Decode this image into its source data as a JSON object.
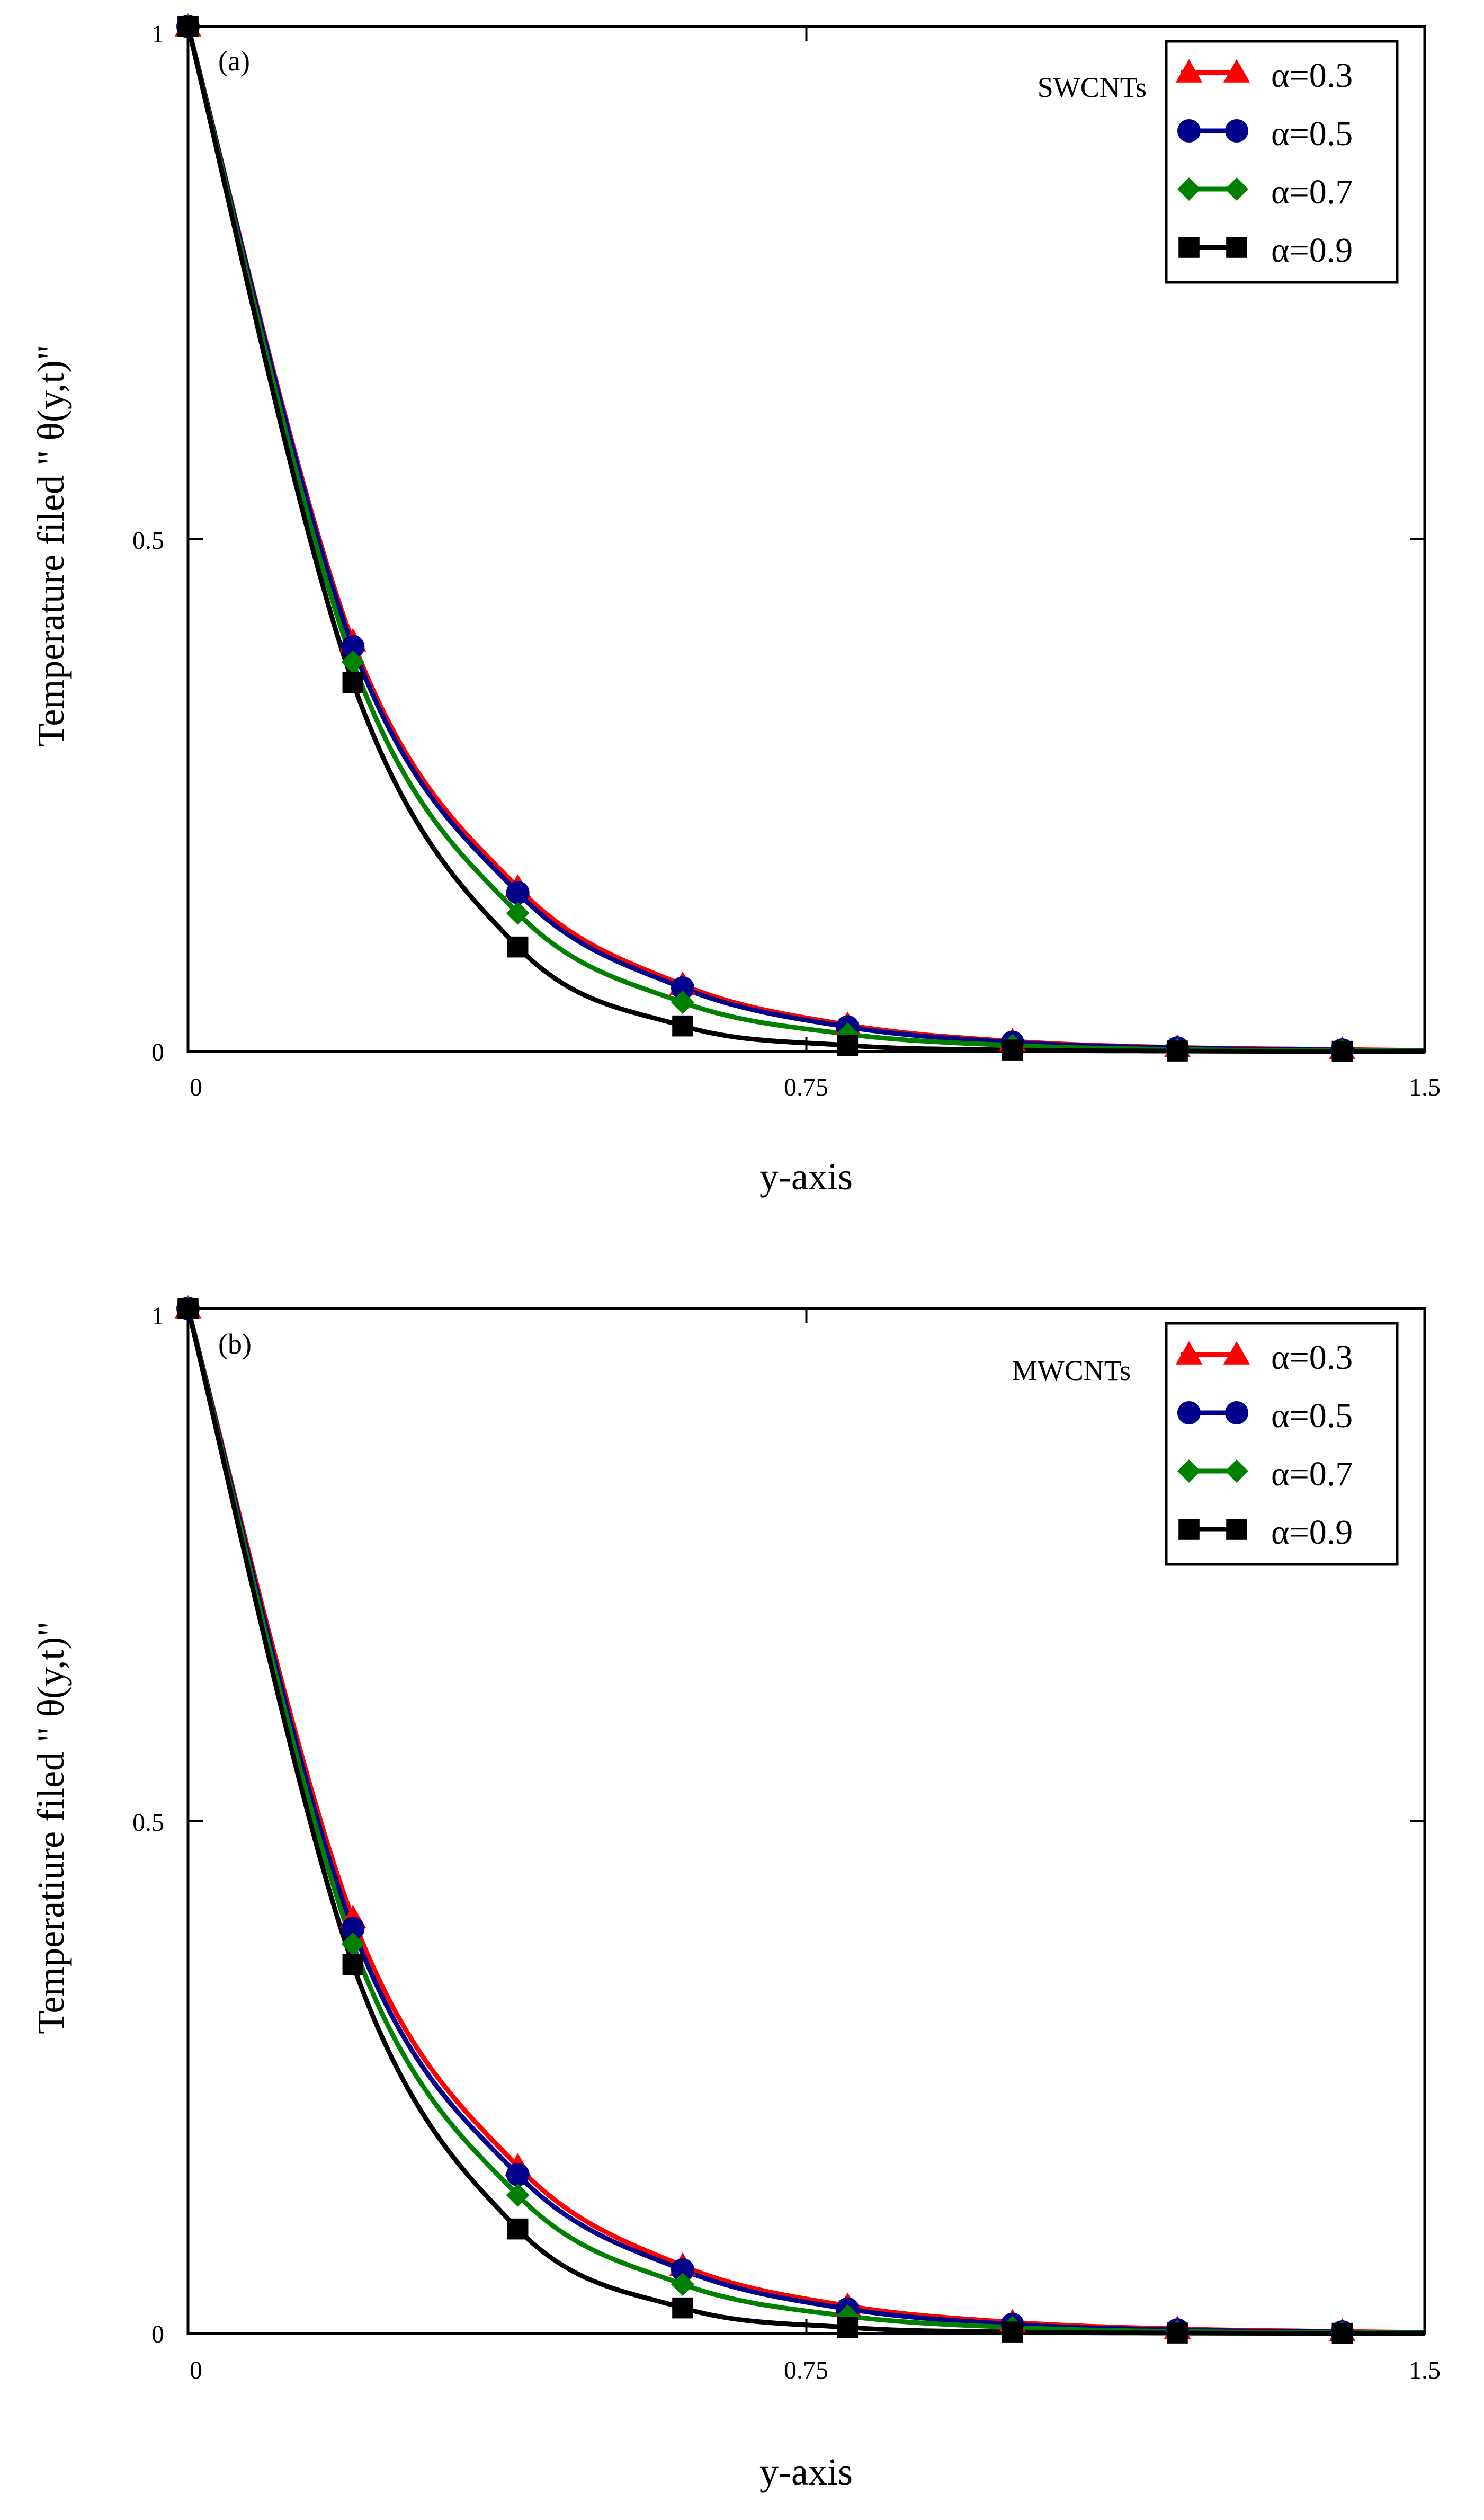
{
  "chart_data": [
    {
      "type": "line",
      "panel_label": "(a)",
      "annotation": "SWCNTs",
      "xlabel": "y-axis",
      "ylabel": "Temperature filed \" θ(y,t)\"",
      "xlim": [
        0,
        1.5
      ],
      "ylim": [
        0,
        1
      ],
      "xticks": [
        "0",
        "0.75",
        "1.5"
      ],
      "yticks": [
        "0",
        "0.5",
        "1"
      ],
      "legend_position": "top-right",
      "marker_x": [
        0,
        0.2,
        0.4,
        0.6,
        0.8,
        1.0,
        1.2,
        1.4
      ],
      "series": [
        {
          "name": "α=0.3",
          "color": "#ff0000",
          "marker": "triangle",
          "values": [
            1.0,
            0.4,
            0.16,
            0.065,
            0.026,
            0.01,
            0.004,
            0.002
          ]
        },
        {
          "name": "α=0.5",
          "color": "#00008b",
          "marker": "circle",
          "values": [
            1.0,
            0.395,
            0.155,
            0.062,
            0.024,
            0.009,
            0.0035,
            0.0015
          ]
        },
        {
          "name": "α=0.7",
          "color": "#008000",
          "marker": "diamond",
          "values": [
            1.0,
            0.38,
            0.135,
            0.048,
            0.017,
            0.006,
            0.002,
            0.001
          ]
        },
        {
          "name": "α=0.9",
          "color": "#000000",
          "marker": "square",
          "values": [
            1.0,
            0.36,
            0.102,
            0.025,
            0.006,
            0.0015,
            0.0005,
            0.0002
          ]
        }
      ]
    },
    {
      "type": "line",
      "panel_label": "(b)",
      "annotation": "MWCNTs",
      "xlabel": "y-axis",
      "ylabel": "Temperatiure filed \" θ(y,t)\"",
      "xlim": [
        0,
        1.5
      ],
      "ylim": [
        0,
        1
      ],
      "xticks": [
        "0",
        "0.75",
        "1.5"
      ],
      "yticks": [
        "0",
        "0.5",
        "1"
      ],
      "legend_position": "top-right",
      "marker_x": [
        0,
        0.2,
        0.4,
        0.6,
        0.8,
        1.0,
        1.2,
        1.4
      ],
      "series": [
        {
          "name": "α=0.3",
          "color": "#ff0000",
          "marker": "triangle",
          "values": [
            1.0,
            0.405,
            0.163,
            0.066,
            0.027,
            0.011,
            0.0045,
            0.002
          ]
        },
        {
          "name": "α=0.5",
          "color": "#00008b",
          "marker": "circle",
          "values": [
            1.0,
            0.395,
            0.155,
            0.062,
            0.024,
            0.009,
            0.0035,
            0.0015
          ]
        },
        {
          "name": "α=0.7",
          "color": "#008000",
          "marker": "diamond",
          "values": [
            1.0,
            0.38,
            0.135,
            0.048,
            0.017,
            0.006,
            0.002,
            0.001
          ]
        },
        {
          "name": "α=0.9",
          "color": "#000000",
          "marker": "square",
          "values": [
            1.0,
            0.36,
            0.102,
            0.025,
            0.006,
            0.0015,
            0.0005,
            0.0002
          ]
        }
      ]
    }
  ]
}
